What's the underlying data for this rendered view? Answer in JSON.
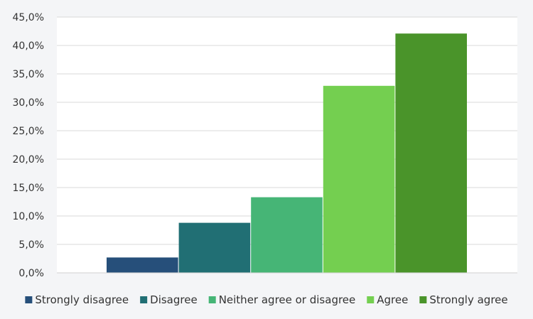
{
  "chart_data": {
    "type": "bar",
    "title": "",
    "xlabel": "",
    "ylabel": "",
    "ylim": [
      0,
      45
    ],
    "yticks": [
      "0,0%",
      "5,0%",
      "10,0%",
      "15,0%",
      "20,0%",
      "25,0%",
      "30,0%",
      "35,0%",
      "40,0%",
      "45,0%"
    ],
    "grid": true,
    "legend_position": "bottom",
    "categories": [
      ""
    ],
    "series": [
      {
        "name": "Strongly disagree",
        "values": [
          2.7
        ],
        "color": "#264f7a"
      },
      {
        "name": "Disagree",
        "values": [
          8.8
        ],
        "color": "#216f74"
      },
      {
        "name": "Neither agree or disagree",
        "values": [
          13.3
        ],
        "color": "#46b576"
      },
      {
        "name": "Agree",
        "values": [
          32.9
        ],
        "color": "#74cf50"
      },
      {
        "name": "Strongly agree",
        "values": [
          42.1
        ],
        "color": "#4a942a"
      }
    ]
  }
}
